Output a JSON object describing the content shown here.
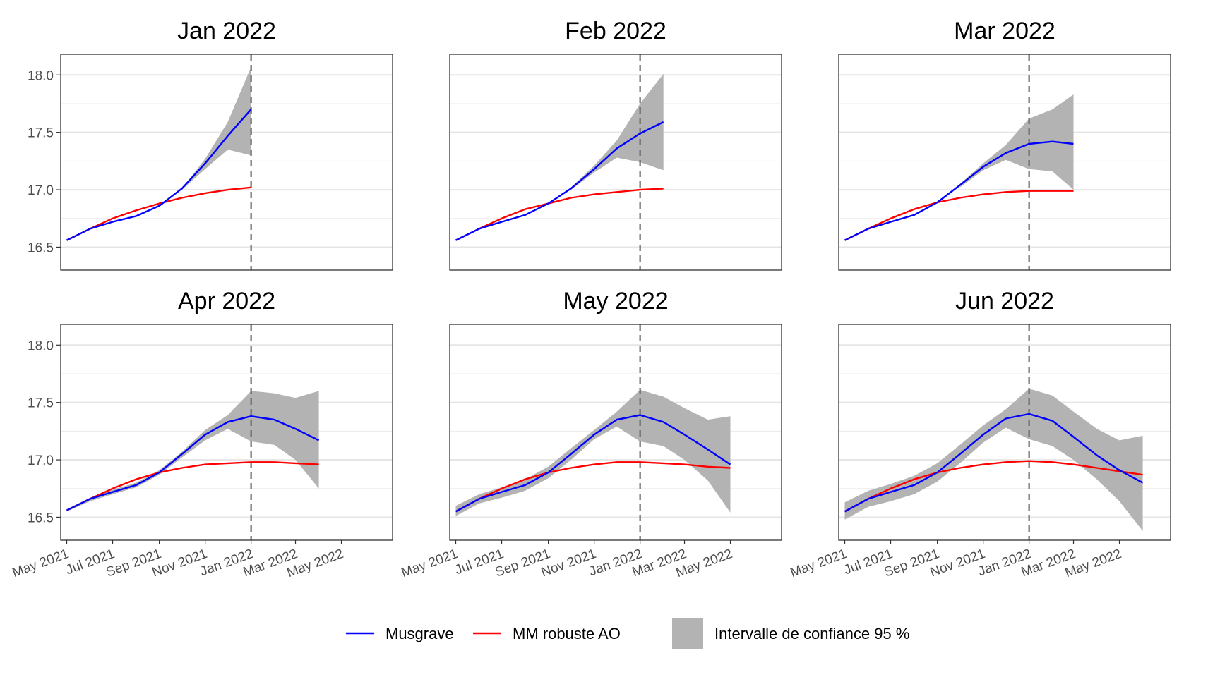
{
  "chart_data": {
    "type": "line",
    "x_ticks": [
      "May 2021",
      "Jul 2021",
      "Sep 2021",
      "Nov 2021",
      "Jan 2022",
      "Mar 2022",
      "May 2022"
    ],
    "x_range": [
      "2021-04-23",
      "2022-07-08"
    ],
    "y_ticks": [
      "16.5",
      "17.0",
      "17.5",
      "18.0"
    ],
    "ylim": [
      16.3,
      18.18
    ],
    "reference_date": "2022-01-01",
    "colors": {
      "musgrave": "#0000ff",
      "robust": "#ff0000",
      "band": "#b3b3b3",
      "refline": "#666666"
    },
    "legend": {
      "musgrave": "Musgrave",
      "robust": "MM robuste AO",
      "band": "Intervalle de confiance 95 %"
    },
    "panels": [
      {
        "title": "Jan 2022",
        "x": [
          "2021-05-01",
          "2021-06-01",
          "2021-07-01",
          "2021-08-01",
          "2021-09-01",
          "2021-10-01",
          "2021-11-01",
          "2021-12-01",
          "2022-01-01"
        ],
        "musgrave": [
          16.56,
          16.66,
          16.72,
          16.77,
          16.86,
          17.01,
          17.23,
          17.47,
          17.7
        ],
        "robust": [
          16.56,
          16.66,
          16.75,
          16.82,
          16.88,
          16.93,
          16.97,
          17.0,
          17.02
        ],
        "band_lower": [
          null,
          null,
          null,
          null,
          null,
          17.0,
          17.18,
          17.35,
          17.3
        ],
        "band_upper": [
          null,
          null,
          null,
          null,
          null,
          17.01,
          17.27,
          17.59,
          18.07
        ]
      },
      {
        "title": "Feb 2022",
        "x": [
          "2021-05-01",
          "2021-06-01",
          "2021-07-01",
          "2021-08-01",
          "2021-09-01",
          "2021-10-01",
          "2021-11-01",
          "2021-12-01",
          "2022-01-01",
          "2022-02-01"
        ],
        "musgrave": [
          16.56,
          16.66,
          16.72,
          16.78,
          16.88,
          17.01,
          17.18,
          17.36,
          17.49,
          17.59
        ],
        "robust": [
          16.56,
          16.66,
          16.75,
          16.83,
          16.88,
          16.93,
          16.96,
          16.98,
          17.0,
          17.01
        ],
        "band_lower": [
          null,
          null,
          null,
          null,
          null,
          17.0,
          17.15,
          17.28,
          17.24,
          17.17
        ],
        "band_upper": [
          null,
          null,
          null,
          null,
          null,
          17.02,
          17.21,
          17.43,
          17.75,
          18.01
        ]
      },
      {
        "title": "Mar 2022",
        "x": [
          "2021-05-01",
          "2021-06-01",
          "2021-07-01",
          "2021-08-01",
          "2021-09-01",
          "2021-10-01",
          "2021-11-01",
          "2021-12-01",
          "2022-01-01",
          "2022-02-01",
          "2022-03-01"
        ],
        "musgrave": [
          16.56,
          16.66,
          16.72,
          16.78,
          16.89,
          17.04,
          17.2,
          17.32,
          17.4,
          17.42,
          17.4
        ],
        "robust": [
          16.56,
          16.66,
          16.75,
          16.83,
          16.89,
          16.93,
          16.96,
          16.98,
          16.99,
          16.99,
          16.99
        ],
        "band_lower": [
          null,
          null,
          null,
          null,
          null,
          17.02,
          17.17,
          17.26,
          17.18,
          17.16,
          17.0
        ],
        "band_upper": [
          null,
          null,
          null,
          null,
          null,
          17.05,
          17.23,
          17.39,
          17.62,
          17.7,
          17.83
        ]
      },
      {
        "title": "Apr 2022",
        "x": [
          "2021-05-01",
          "2021-06-01",
          "2021-07-01",
          "2021-08-01",
          "2021-09-01",
          "2021-10-01",
          "2021-11-01",
          "2021-12-01",
          "2022-01-01",
          "2022-02-01",
          "2022-03-01",
          "2022-04-01"
        ],
        "musgrave": [
          16.56,
          16.66,
          16.72,
          16.78,
          16.89,
          17.05,
          17.22,
          17.33,
          17.38,
          17.35,
          17.27,
          17.17
        ],
        "robust": [
          16.56,
          16.66,
          16.75,
          16.83,
          16.89,
          16.93,
          16.96,
          16.97,
          16.98,
          16.98,
          16.97,
          16.96
        ],
        "band_lower": [
          16.55,
          16.64,
          16.7,
          16.76,
          16.87,
          17.02,
          17.17,
          17.27,
          17.16,
          17.13,
          17.0,
          16.75
        ],
        "band_upper": [
          16.57,
          16.67,
          16.74,
          16.8,
          16.91,
          17.07,
          17.26,
          17.39,
          17.6,
          17.58,
          17.54,
          17.6
        ]
      },
      {
        "title": "May 2022",
        "x": [
          "2021-05-01",
          "2021-06-01",
          "2021-07-01",
          "2021-08-01",
          "2021-09-01",
          "2021-10-01",
          "2021-11-01",
          "2021-12-01",
          "2022-01-01",
          "2022-02-01",
          "2022-03-01",
          "2022-04-01",
          "2022-05-01"
        ],
        "musgrave": [
          16.55,
          16.66,
          16.72,
          16.78,
          16.89,
          17.05,
          17.22,
          17.35,
          17.39,
          17.33,
          17.22,
          17.09,
          16.96
        ],
        "robust": [
          16.55,
          16.66,
          16.75,
          16.83,
          16.89,
          16.93,
          16.96,
          16.98,
          16.98,
          16.97,
          16.96,
          16.94,
          16.93
        ],
        "band_lower": [
          16.51,
          16.62,
          16.67,
          16.73,
          16.84,
          17.0,
          17.18,
          17.29,
          17.16,
          17.12,
          17.0,
          16.82,
          16.54
        ],
        "band_upper": [
          16.6,
          16.7,
          16.76,
          16.83,
          16.94,
          17.1,
          17.26,
          17.42,
          17.61,
          17.55,
          17.45,
          17.35,
          17.38
        ]
      },
      {
        "title": "Jun 2022",
        "x": [
          "2021-05-01",
          "2021-06-01",
          "2021-07-01",
          "2021-08-01",
          "2021-09-01",
          "2021-10-01",
          "2021-11-01",
          "2021-12-01",
          "2022-01-01",
          "2022-02-01",
          "2022-03-01",
          "2022-04-01",
          "2022-05-01",
          "2022-06-01"
        ],
        "musgrave": [
          16.55,
          16.66,
          16.72,
          16.78,
          16.89,
          17.05,
          17.22,
          17.36,
          17.4,
          17.34,
          17.2,
          17.04,
          16.91,
          16.8
        ],
        "robust": [
          16.55,
          16.66,
          16.75,
          16.83,
          16.89,
          16.93,
          16.96,
          16.98,
          16.99,
          16.98,
          16.96,
          16.93,
          16.9,
          16.87
        ],
        "band_lower": [
          16.48,
          16.59,
          16.64,
          16.7,
          16.81,
          16.97,
          17.15,
          17.28,
          17.18,
          17.12,
          17.0,
          16.83,
          16.64,
          16.38
        ],
        "band_upper": [
          16.63,
          16.73,
          16.79,
          16.86,
          16.97,
          17.13,
          17.3,
          17.44,
          17.62,
          17.56,
          17.42,
          17.27,
          17.17,
          17.21
        ]
      }
    ]
  }
}
